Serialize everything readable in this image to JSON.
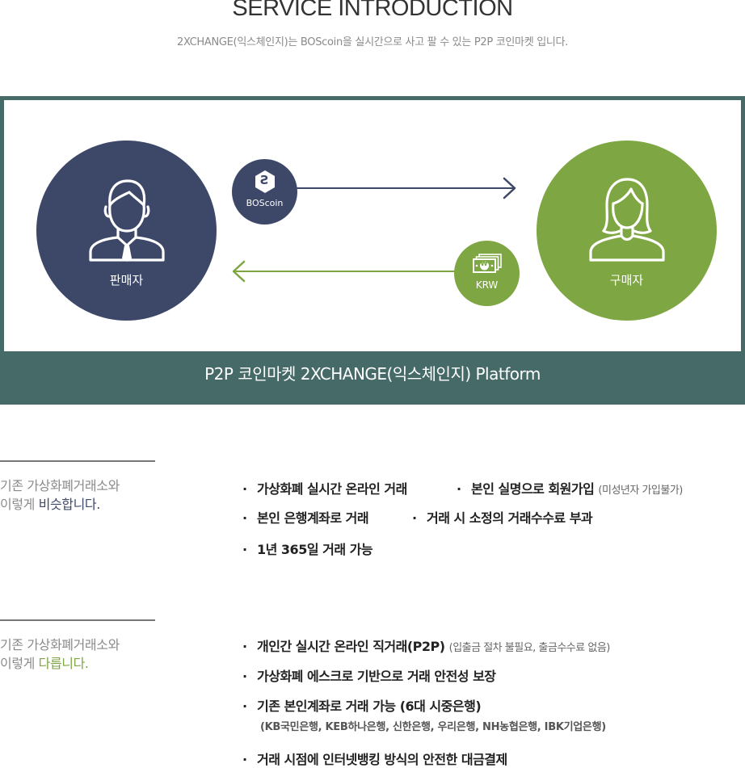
{
  "header": {
    "title": "SERVICE INTRODUCTION",
    "subtitle": "2XCHANGE(익스체인지)는  BOScoin을 실시간으로 사고 팔 수 있는 P2P 코인마켓 입니다."
  },
  "diagram": {
    "seller_label": "판매자",
    "buyer_label": "구매자",
    "coin_badge": {
      "glyph": "Ƨ",
      "label": "BOScoin"
    },
    "krw_badge": {
      "glyph": "₩",
      "label": "KRW"
    },
    "platform_label": "P2P 코인마켓 2XCHANGE(익스체인지) Platform",
    "icons": [
      "male-user-icon",
      "female-user-icon",
      "boscoin-icon",
      "banknote-icon",
      "arrow-right-icon",
      "arrow-left-icon"
    ]
  },
  "similar": {
    "side_line1": "기존 가상화폐거래소와",
    "side_line2_prefix": "이렇게 ",
    "side_line2_highlight": "비슷합니다.",
    "bullets": {
      "b1": "가상화폐 실시간 온라인 거래",
      "b2": "본인 실명으로 회원가입",
      "b2_note": "(미성년자 가입불가)",
      "b3": "본인 은행계좌로 거래",
      "b4": "거래 시 소정의 거래수수료 부과",
      "b5": "1년 365일 거래 가능"
    }
  },
  "different": {
    "side_line1": "기존 가상화폐거래소와",
    "side_line2_prefix": "이렇게 ",
    "side_line2_highlight": "다릅니다.",
    "bullets": {
      "b1": "개인간 실시간 온라인 직거래(P2P)",
      "b1_note": "(입출금 절차 불필요, 출금수수료 없음)",
      "b2": "가상화폐 에스크로 기반으로 거래 안전성 보장",
      "b3": "기존 본인계좌로 거래 가능 (6대 시중은행)",
      "b3_sub": "(KB국민은행, KEB하나은행, 신한은행, 우리은행, NH농협은행, IBK기업은행)",
      "b4": "거래 시점에 인터넷뱅킹 방식의 안전한 대금결제"
    }
  },
  "bullet_glyph": "·",
  "colors": {
    "navy": "#3d4869",
    "green": "#7ea642",
    "teal": "#456a68",
    "gray": "#8a8a8a"
  }
}
